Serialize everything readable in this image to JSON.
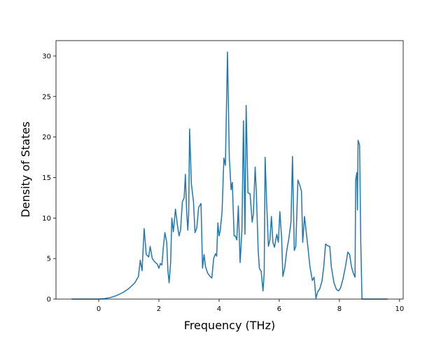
{
  "chart_data": {
    "type": "line",
    "x_label": "Frequency (THz)",
    "y_label": "Density of States",
    "xlim": [
      -1.42,
      10.12
    ],
    "ylim": [
      0,
      31.9
    ],
    "xticks": [
      0,
      2,
      4,
      6,
      8,
      10
    ],
    "yticks": [
      0,
      5,
      10,
      15,
      20,
      25,
      30
    ],
    "series": [
      {
        "color": "#1f77b4",
        "x": [
          -0.9,
          -0.5,
          0,
          0.2,
          0.4,
          0.6,
          0.8,
          1.0,
          1.2,
          1.32,
          1.38,
          1.44,
          1.51,
          1.58,
          1.66,
          1.71,
          1.78,
          1.86,
          1.95,
          2.0,
          2.05,
          2.1,
          2.15,
          2.2,
          2.26,
          2.3,
          2.34,
          2.39,
          2.43,
          2.48,
          2.55,
          2.62,
          2.67,
          2.72,
          2.78,
          2.84,
          2.88,
          2.92,
          2.96,
          2.99,
          3.02,
          3.08,
          3.15,
          3.2,
          3.26,
          3.32,
          3.4,
          3.45,
          3.5,
          3.55,
          3.62,
          3.7,
          3.76,
          3.82,
          3.88,
          3.92,
          3.96,
          4.0,
          4.04,
          4.1,
          4.16,
          4.21,
          4.28,
          4.34,
          4.4,
          4.44,
          4.5,
          4.54,
          4.59,
          4.64,
          4.7,
          4.76,
          4.81,
          4.86,
          4.9,
          4.96,
          5.03,
          5.1,
          5.14,
          5.2,
          5.24,
          5.3,
          5.34,
          5.4,
          5.46,
          5.5,
          5.53,
          5.58,
          5.64,
          5.69,
          5.74,
          5.79,
          5.84,
          5.92,
          5.97,
          6.02,
          6.08,
          6.12,
          6.18,
          6.25,
          6.32,
          6.39,
          6.44,
          6.5,
          6.55,
          6.62,
          6.67,
          6.74,
          6.78,
          6.84,
          6.89,
          6.95,
          7.02,
          7.1,
          7.16,
          7.22,
          7.28,
          7.35,
          7.42,
          7.48,
          7.54,
          7.6,
          7.68,
          7.73,
          7.82,
          7.9,
          7.97,
          8.04,
          8.12,
          8.2,
          8.28,
          8.34,
          8.4,
          8.46,
          8.52,
          8.54,
          8.58,
          8.6,
          8.62,
          8.67,
          8.71,
          8.75,
          9.6
        ],
        "values": [
          0,
          0,
          0,
          0.05,
          0.2,
          0.45,
          0.8,
          1.3,
          2.0,
          2.8,
          4.8,
          3.5,
          8.7,
          5.5,
          5.2,
          6.5,
          5.0,
          4.6,
          4.3,
          3.8,
          4.4,
          4.2,
          6.5,
          8.2,
          7.0,
          3.5,
          2.0,
          4.5,
          10.0,
          8.3,
          11.1,
          9.0,
          7.8,
          8.5,
          12.0,
          12.5,
          15.4,
          11.0,
          8.5,
          10.5,
          21.0,
          14.2,
          12.0,
          8.2,
          8.8,
          11.3,
          11.8,
          3.8,
          5.5,
          4.0,
          3.2,
          2.8,
          2.6,
          5.0,
          5.6,
          5.3,
          9.4,
          7.8,
          8.5,
          10.8,
          17.4,
          16.5,
          30.5,
          17.5,
          13.5,
          14.4,
          7.8,
          7.8,
          7.3,
          11.5,
          4.5,
          8.5,
          22.0,
          8.0,
          23.9,
          13.1,
          13.0,
          9.5,
          10.5,
          16.3,
          13.0,
          6.0,
          3.8,
          3.4,
          1.0,
          3.2,
          17.5,
          12.0,
          6.5,
          7.3,
          10.2,
          7.0,
          6.4,
          8.0,
          7.0,
          10.8,
          7.5,
          2.8,
          3.8,
          6.0,
          7.5,
          9.5,
          17.6,
          6.0,
          6.5,
          14.7,
          14.2,
          13.3,
          7.0,
          10.2,
          8.5,
          6.5,
          4.0,
          2.3,
          2.7,
          0.1,
          0.9,
          1.3,
          2.2,
          4.0,
          6.8,
          6.6,
          6.5,
          4.0,
          2.0,
          1.2,
          1.0,
          1.4,
          2.5,
          4.0,
          5.8,
          5.5,
          4.0,
          3.2,
          2.7,
          14.7,
          15.6,
          11.0,
          19.6,
          19.0,
          7.0,
          0,
          0
        ]
      }
    ]
  }
}
